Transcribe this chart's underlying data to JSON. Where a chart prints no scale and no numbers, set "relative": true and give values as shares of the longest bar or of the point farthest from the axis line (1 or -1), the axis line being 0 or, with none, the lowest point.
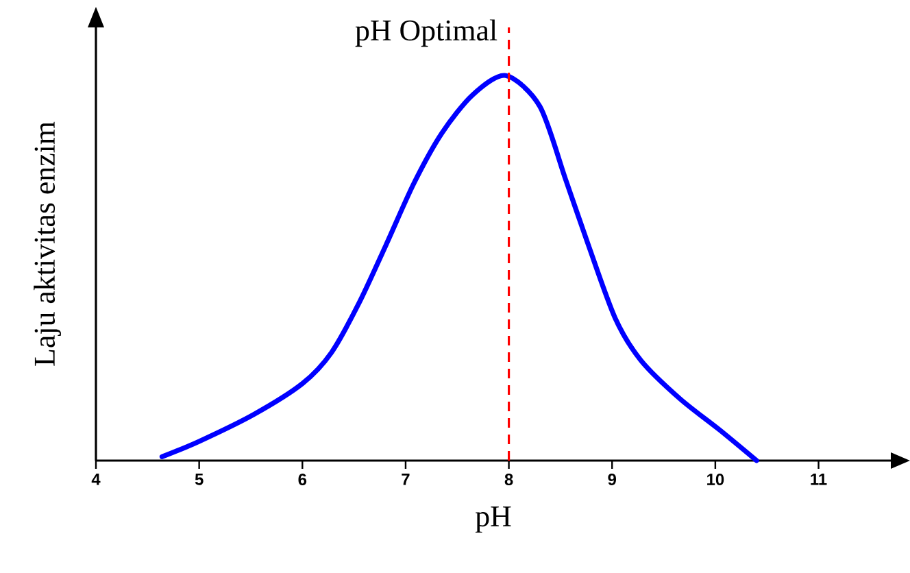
{
  "chart_data": {
    "type": "line",
    "xlabel": "pH",
    "ylabel": "Laju aktivitas enzim",
    "relative": true,
    "tick_labels": "x",
    "xlim": [
      4,
      11.7
    ],
    "xticks": [
      4,
      5,
      6,
      7,
      8,
      9,
      10,
      11
    ],
    "x": [
      4.64,
      5.0,
      5.53,
      6.0,
      6.28,
      6.55,
      6.81,
      7.08,
      7.35,
      7.65,
      7.97,
      8.3,
      8.55,
      8.77,
      9.03,
      9.28,
      9.66,
      10.04,
      10.4
    ],
    "series": [
      {
        "color": "#0000ff",
        "values": [
          0.01,
          0.05,
          0.12,
          0.2,
          0.28,
          0.41,
          0.56,
          0.72,
          0.85,
          0.95,
          1.0,
          0.92,
          0.73,
          0.56,
          0.37,
          0.26,
          0.16,
          0.08,
          0.0
        ]
      }
    ],
    "ref_lines": [
      {
        "axis": "x",
        "value": 8,
        "label": "pH Optimal",
        "color": "#ff0000",
        "line_style": "dashed"
      }
    ]
  }
}
